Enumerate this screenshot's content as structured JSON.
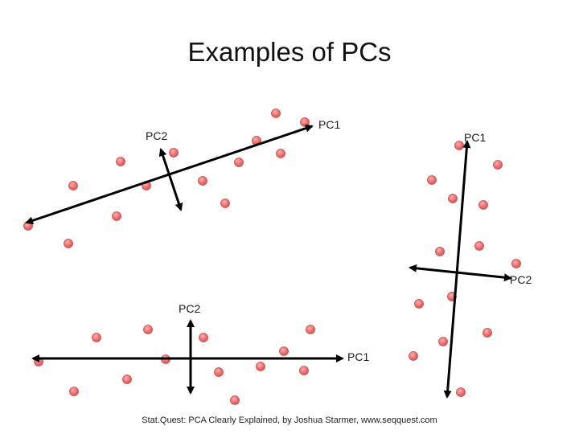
{
  "title": "Examples of PCs",
  "footer": "Stat.Quest: PCA Clearly Explained, by Joshua Starmer, www.seqquest.com",
  "colors": {
    "point_fill": "#ee6f6f",
    "point_stroke": "#c94d4d",
    "arrow": "#000000"
  },
  "examples": [
    {
      "pc1_label": "PC1",
      "pc2_label": "PC2"
    },
    {
      "pc1_label": "PC1",
      "pc2_label": "PC2"
    },
    {
      "pc1_label": "PC1",
      "pc2_label": "PC2"
    }
  ]
}
